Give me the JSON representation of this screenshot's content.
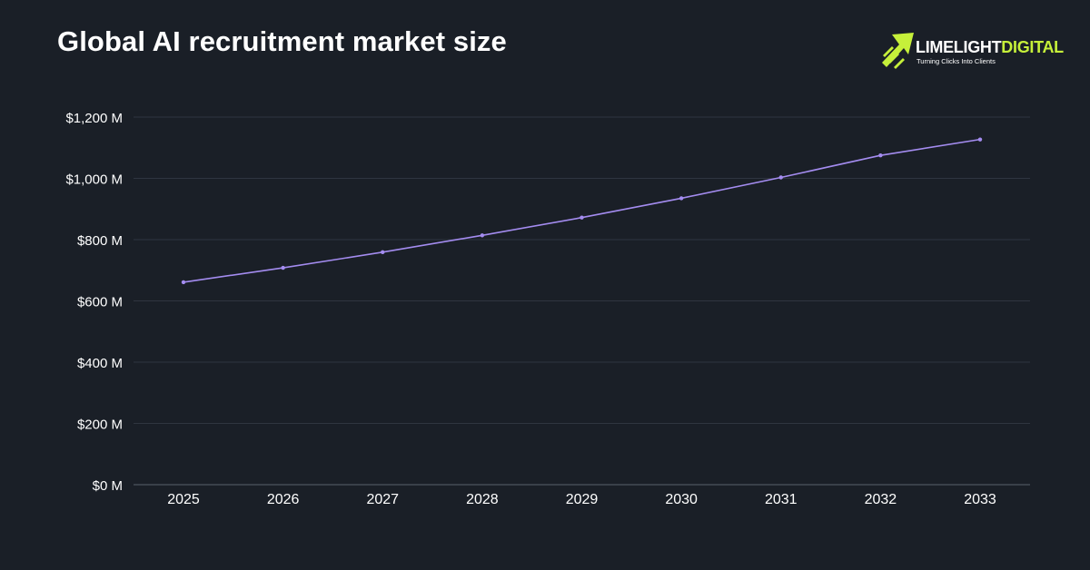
{
  "header": {
    "title": "Global AI recruitment market size"
  },
  "logo": {
    "brand_part1": "LIMELIGHT",
    "brand_part2": "DIGITAL",
    "tagline": "Turning Clicks Into Clients",
    "icon": "rising-arrows-icon",
    "accent_color": "#c6f03a"
  },
  "chart_data": {
    "type": "line",
    "title": "Global AI recruitment market size",
    "x": [
      "2025",
      "2026",
      "2027",
      "2028",
      "2029",
      "2030",
      "2031",
      "2032",
      "2033"
    ],
    "series": [
      {
        "values": [
          661,
          708,
          759,
          814,
          872,
          935,
          1003,
          1075,
          1127
        ],
        "color": "#a48cf0"
      }
    ],
    "yticks": [
      "$0 M",
      "$200 M",
      "$400 M",
      "$600 M",
      "$800 M",
      "$1,000 M",
      "$1,200 M"
    ],
    "ylim": [
      0,
      1200
    ],
    "grid": true,
    "legend": "none"
  }
}
